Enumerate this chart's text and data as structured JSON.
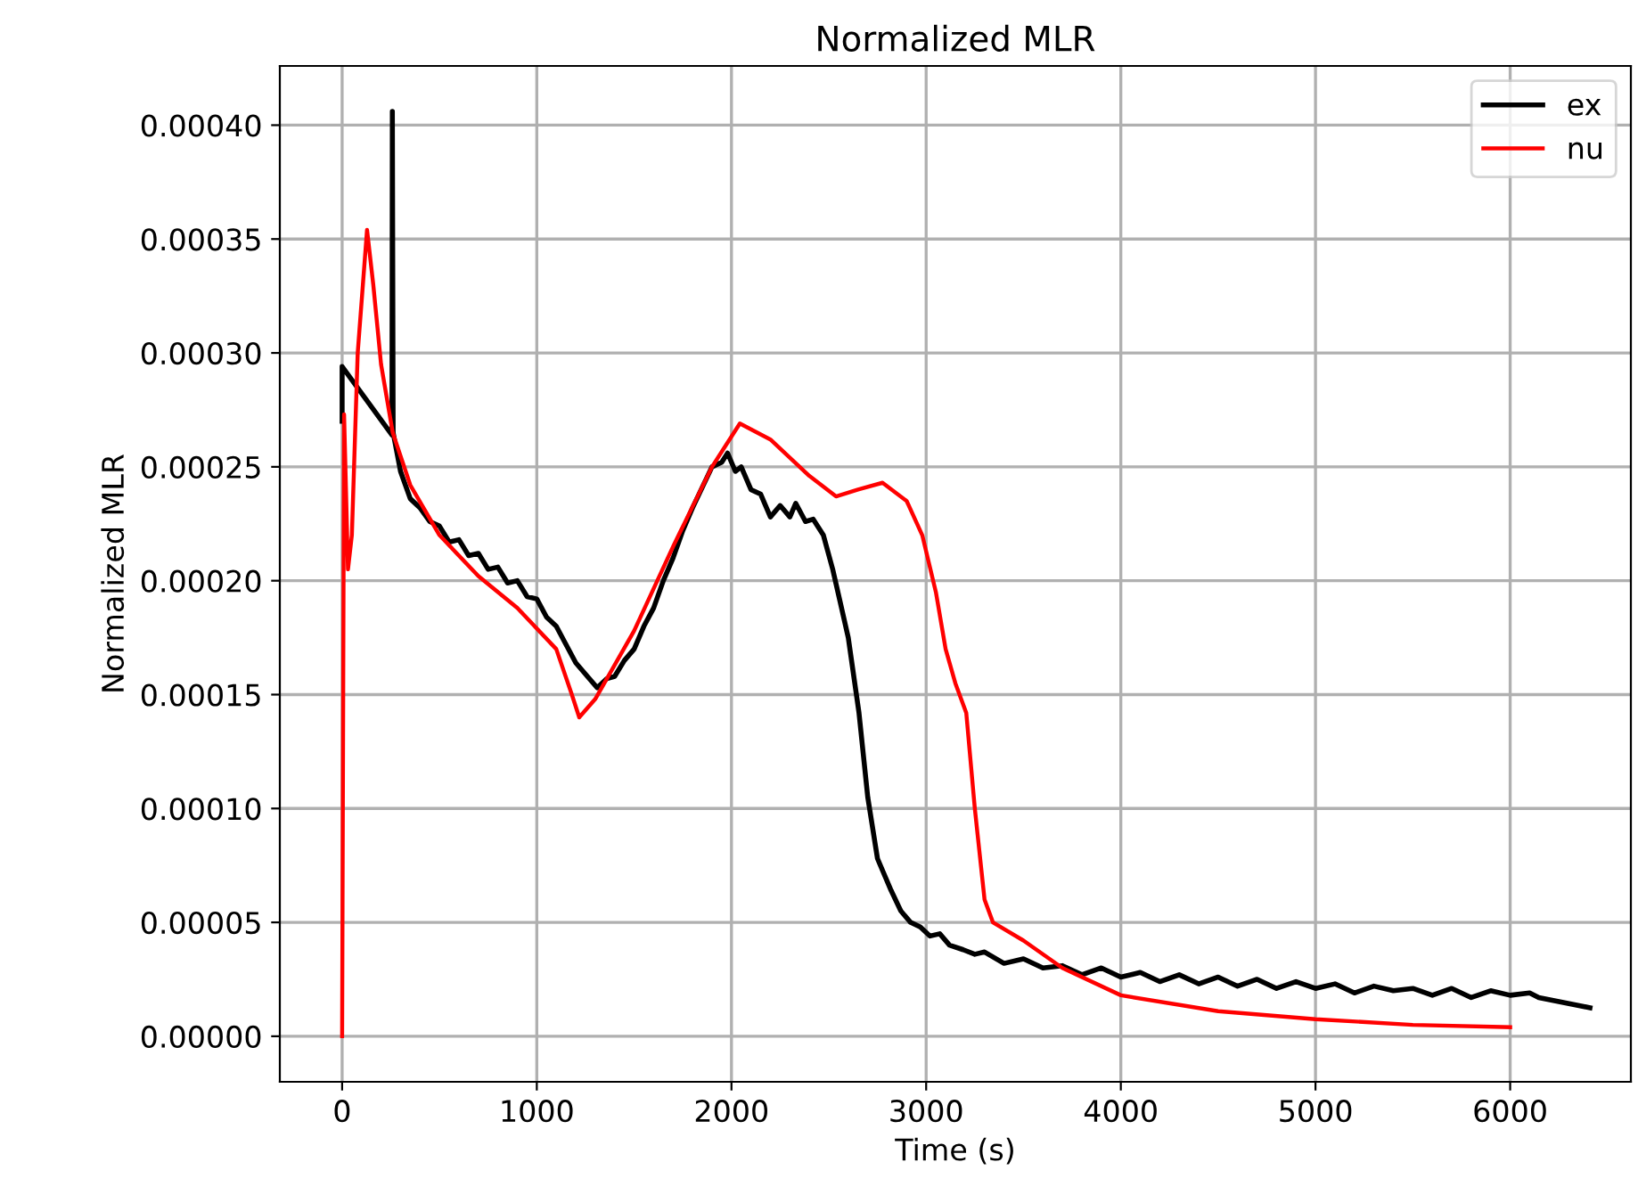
{
  "chart_data": {
    "type": "line",
    "title": "Normalized MLR",
    "xlabel": "Time (s)",
    "ylabel": "Normalized MLR",
    "xlim": [
      -320,
      6620
    ],
    "xticks": [
      0,
      1000,
      2000,
      3000,
      4000,
      5000,
      6000
    ],
    "ylim": [
      -2e-05,
      0.000426
    ],
    "yticks": [
      {
        "value": 0,
        "label": "0.00000"
      },
      {
        "value": 5e-05,
        "label": "0.00005"
      },
      {
        "value": 0.0001,
        "label": "0.00010"
      },
      {
        "value": 0.00015,
        "label": "0.00015"
      },
      {
        "value": 0.0002,
        "label": "0.00020"
      },
      {
        "value": 0.00025,
        "label": "0.00025"
      },
      {
        "value": 0.0003,
        "label": "0.00030"
      },
      {
        "value": 0.00035,
        "label": "0.00035"
      },
      {
        "value": 0.0004,
        "label": "0.00040"
      }
    ],
    "grid": true,
    "legend": "top right",
    "marker": "none",
    "line_style": "solid",
    "series": [
      {
        "name": "ex",
        "color": "#000000",
        "x": [
          0,
          0,
          256,
          258,
          262,
          300,
          350,
          400,
          450,
          500,
          550,
          600,
          650,
          700,
          750,
          800,
          850,
          900,
          950,
          1000,
          1050,
          1100,
          1150,
          1200,
          1250,
          1310,
          1360,
          1400,
          1450,
          1500,
          1550,
          1600,
          1650,
          1700,
          1750,
          1800,
          1850,
          1900,
          1950,
          1980,
          2020,
          2050,
          2100,
          2150,
          2200,
          2250,
          2300,
          2330,
          2380,
          2420,
          2472,
          2520,
          2560,
          2600,
          2655,
          2700,
          2750,
          2820,
          2870,
          2920,
          2970,
          3020,
          3070,
          3120,
          3190,
          3250,
          3300,
          3400,
          3500,
          3600,
          3700,
          3800,
          3900,
          4000,
          4100,
          4200,
          4300,
          4400,
          4500,
          4600,
          4700,
          4800,
          4900,
          5000,
          5100,
          5200,
          5300,
          5400,
          5500,
          5600,
          5700,
          5800,
          5900,
          6000,
          6100,
          6147,
          6410
        ],
        "values": [
          0.00027,
          0.000294,
          0.000264,
          0.000406,
          0.000265,
          0.000248,
          0.000236,
          0.000232,
          0.000226,
          0.000224,
          0.000217,
          0.000218,
          0.000211,
          0.000212,
          0.000205,
          0.000206,
          0.000199,
          0.0002,
          0.000193,
          0.000192,
          0.000184,
          0.00018,
          0.000172,
          0.000164,
          0.000159,
          0.000153,
          0.000157,
          0.000158,
          0.000165,
          0.00017,
          0.00018,
          0.000188,
          0.0002,
          0.00021,
          0.000222,
          0.000232,
          0.000241,
          0.00025,
          0.000252,
          0.000256,
          0.000248,
          0.00025,
          0.00024,
          0.000238,
          0.000228,
          0.000233,
          0.000228,
          0.000234,
          0.000226,
          0.000227,
          0.00022,
          0.000205,
          0.00019,
          0.000175,
          0.000142,
          0.000105,
          7.8e-05,
          6.4e-05,
          5.5e-05,
          5e-05,
          4.8e-05,
          4.4e-05,
          4.5e-05,
          4e-05,
          3.8e-05,
          3.6e-05,
          3.7e-05,
          3.2e-05,
          3.4e-05,
          3e-05,
          3.1e-05,
          2.7e-05,
          3e-05,
          2.6e-05,
          2.8e-05,
          2.4e-05,
          2.7e-05,
          2.3e-05,
          2.6e-05,
          2.2e-05,
          2.5e-05,
          2.1e-05,
          2.4e-05,
          2.1e-05,
          2.3e-05,
          1.9e-05,
          2.2e-05,
          2e-05,
          2.1e-05,
          1.8e-05,
          2.1e-05,
          1.7e-05,
          2e-05,
          1.8e-05,
          1.9e-05,
          1.7e-05,
          1.25e-05
        ]
      },
      {
        "name": "nu",
        "color": "#ff0000",
        "x": [
          0,
          10,
          30,
          50,
          80,
          128,
          160,
          200,
          260,
          350,
          500,
          700,
          900,
          1100,
          1180,
          1218,
          1300,
          1500,
          1700,
          1900,
          2043,
          2200,
          2400,
          2537,
          2650,
          2776,
          2900,
          2980,
          3050,
          3100,
          3150,
          3206,
          3250,
          3300,
          3343,
          3500,
          3700,
          4000,
          4500,
          5000,
          5500,
          6000
        ],
        "values": [
          0,
          0.000273,
          0.000205,
          0.00022,
          0.0003,
          0.000354,
          0.00033,
          0.000295,
          0.000265,
          0.000242,
          0.00022,
          0.000202,
          0.000188,
          0.00017,
          0.00015,
          0.00014,
          0.000148,
          0.000178,
          0.000215,
          0.00025,
          0.000269,
          0.000262,
          0.000246,
          0.000237,
          0.00024,
          0.000243,
          0.000235,
          0.00022,
          0.000195,
          0.00017,
          0.000155,
          0.000142,
          0.0001,
          6e-05,
          5e-05,
          4.2e-05,
          3e-05,
          1.8e-05,
          1.1e-05,
          7.5e-06,
          5e-06,
          4e-06
        ]
      }
    ]
  }
}
